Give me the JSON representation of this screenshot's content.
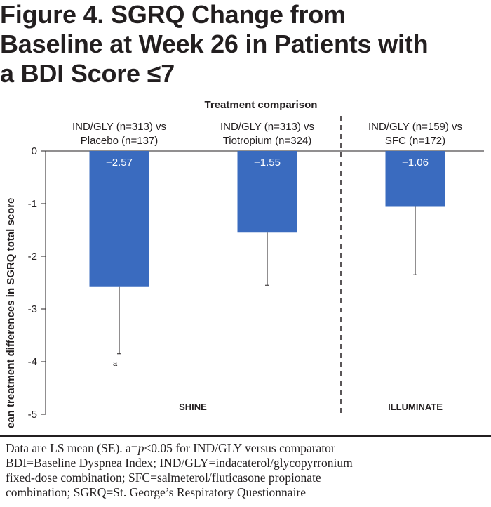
{
  "figure": {
    "title_lines": [
      "Figure 4. SGRQ Change from",
      "Baseline at Week 26 in Patients with",
      "a BDI Score ≤7"
    ]
  },
  "chart_data": {
    "type": "bar",
    "header": "Treatment comparison",
    "ylabel": "Mean treatment differences in SGRQ total score",
    "xlabel": "",
    "ylim": [
      -5,
      0
    ],
    "yticks": [
      0,
      -1,
      -2,
      -3,
      -4,
      -5
    ],
    "ytick_labels": [
      "0",
      "-1",
      "-2",
      "-3",
      "-4",
      "-5"
    ],
    "grid": false,
    "bar_color": "#3a6bbf",
    "categories": [
      [
        "IND/GLY (n=313) vs",
        "Placebo (n=137)"
      ],
      [
        "IND/GLY (n=313) vs",
        "Tiotropium (n=324)"
      ],
      [
        "IND/GLY (n=159) vs",
        "SFC (n=172)"
      ]
    ],
    "values": [
      -2.57,
      -1.55,
      -1.06
    ],
    "value_labels": [
      "−2.57",
      "−1.55",
      "−1.06"
    ],
    "error_low": [
      -3.85,
      -2.55,
      -2.35
    ],
    "significance_marks": [
      "a",
      "",
      ""
    ],
    "study_groups": [
      {
        "name": "SHINE",
        "bars": [
          0,
          1
        ]
      },
      {
        "name": "ILLUMINATE",
        "bars": [
          2
        ]
      }
    ]
  },
  "footnote": {
    "lines": [
      "Data are LS mean (SE). a=p<0.05 for IND/GLY versus comparator",
      "BDI=Baseline Dyspnea Index; IND/GLY=indacaterol/glycopyrronium",
      "fixed-dose combination; SFC=salmeterol/fluticasone propionate",
      "combination; SGRQ=St. George’s Respiratory Questionnaire"
    ]
  }
}
